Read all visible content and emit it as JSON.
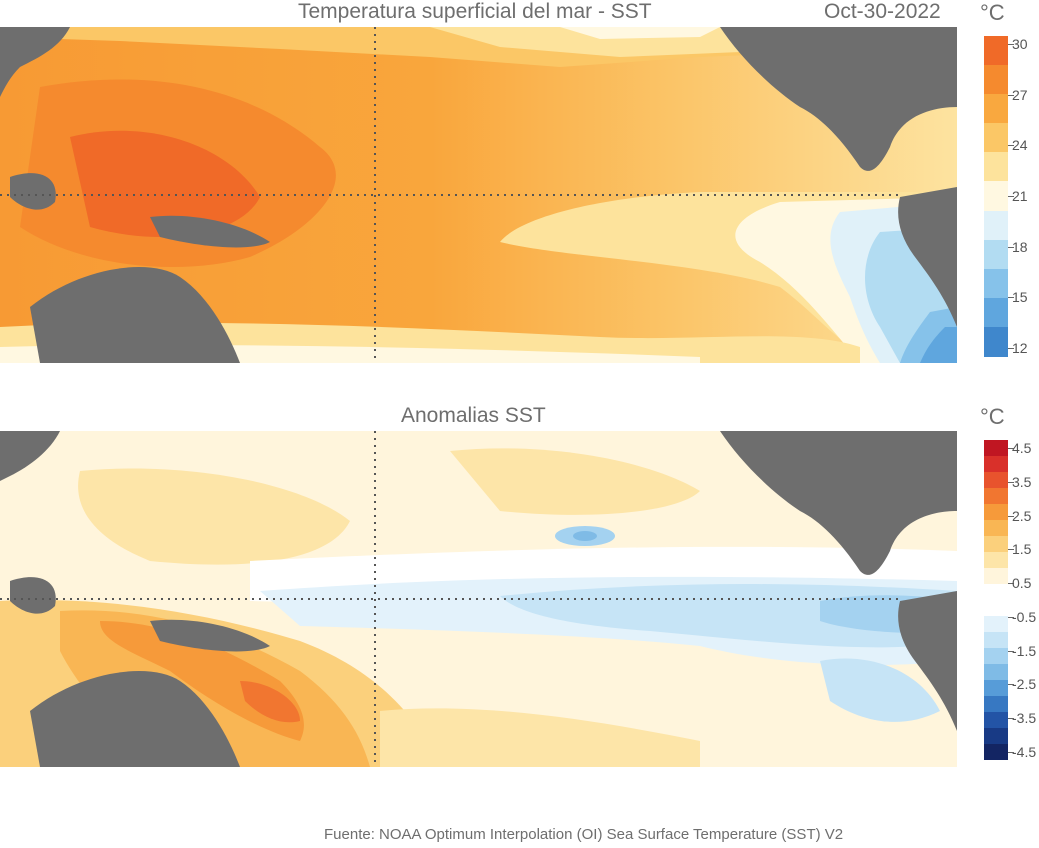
{
  "top": {
    "title": "Temperatura superficial del mar - SST",
    "date": "Oct-30-2022",
    "unit": "°C",
    "colorbar": {
      "ticks": [
        "30",
        "27",
        "24",
        "21",
        "18",
        "15",
        "12"
      ],
      "colors": [
        "#f06a28",
        "#f58a2e",
        "#f9a83f",
        "#fbc766",
        "#fde39c",
        "#fff8e1",
        "#e0f1f9",
        "#b2dcf2",
        "#86c2ea",
        "#5fa6de",
        "#3f87cc"
      ]
    }
  },
  "bottom": {
    "title": "Anomalias SST",
    "unit": "°C",
    "colorbar": {
      "ticks": [
        "4.5",
        "3.5",
        "2.5",
        "1.5",
        "0.5",
        "-0.5",
        "-1.5",
        "-2.5",
        "-3.5",
        "-4.5"
      ],
      "colors": [
        "#c01622",
        "#d9302a",
        "#e8532d",
        "#f17630",
        "#f69a3a",
        "#f9b654",
        "#fbd07c",
        "#fde5a8",
        "#fff5dc",
        "#ffffff",
        "#ffffff",
        "#e3f2fb",
        "#c6e4f6",
        "#a4d2f0",
        "#7fbbe6",
        "#579cd8",
        "#3778c2",
        "#2354a6",
        "#183a85",
        "#132563"
      ]
    }
  },
  "source": "Fuente: NOAA Optimum Interpolation (OI) Sea Surface Temperature (SST) V2"
}
